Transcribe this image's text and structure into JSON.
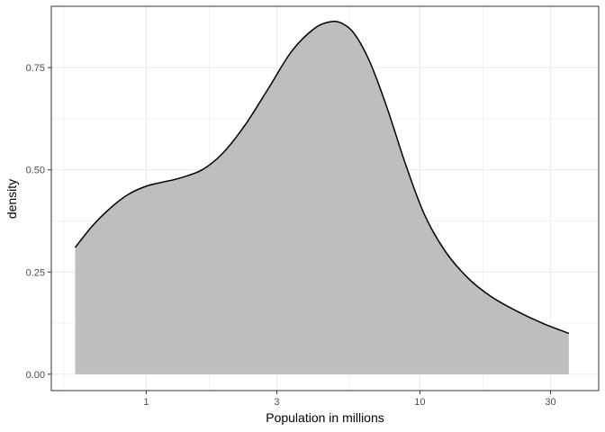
{
  "chart_data": {
    "type": "area",
    "xlabel": "Population in millions",
    "ylabel": "density",
    "x_scale": "log10",
    "xlim": [
      0.45,
      45
    ],
    "ylim": [
      -0.04,
      0.9
    ],
    "x_ticks": [
      {
        "value": 1,
        "label": "1"
      },
      {
        "value": 3,
        "label": "3"
      },
      {
        "value": 10,
        "label": "10"
      },
      {
        "value": 30,
        "label": "30"
      }
    ],
    "x_minor_ticks": [
      0.5,
      1.7,
      5.5,
      17
    ],
    "y_ticks": [
      {
        "value": 0,
        "label": "0.00"
      },
      {
        "value": 0.25,
        "label": "0.25"
      },
      {
        "value": 0.5,
        "label": "0.50"
      },
      {
        "value": 0.75,
        "label": "0.75"
      }
    ],
    "y_minor_ticks": [
      0.125,
      0.375,
      0.625
    ],
    "grid": true,
    "colors": {
      "fill": "#bebebe",
      "line": "#000000",
      "grid": "#ebebeb",
      "panel_border": "#333333"
    },
    "x": [
      0.55,
      0.64,
      0.75,
      0.86,
      1.0,
      1.15,
      1.33,
      1.6,
      1.9,
      2.3,
      2.8,
      3.4,
      4.1,
      4.7,
      5.2,
      5.8,
      6.6,
      7.6,
      8.9,
      10.4,
      12.4,
      15,
      18.2,
      22.5,
      28,
      35
    ],
    "y": [
      0.31,
      0.365,
      0.41,
      0.44,
      0.46,
      0.47,
      0.48,
      0.5,
      0.54,
      0.61,
      0.7,
      0.79,
      0.845,
      0.862,
      0.858,
      0.83,
      0.76,
      0.65,
      0.51,
      0.39,
      0.3,
      0.235,
      0.19,
      0.155,
      0.125,
      0.1
    ]
  }
}
